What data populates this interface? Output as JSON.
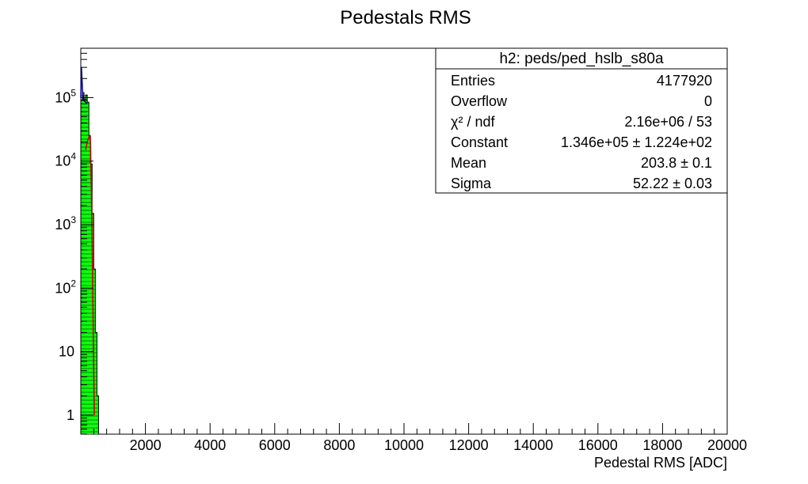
{
  "chart_data": {
    "type": "histogram",
    "title": "Pedestals RMS",
    "xlabel": "Pedestal RMS [ADC]",
    "ylabel": "",
    "xlim": [
      0,
      20000
    ],
    "ylim": [
      0.5,
      600000
    ],
    "log_y": true,
    "grid": false,
    "x_ticks": [
      2000,
      4000,
      6000,
      8000,
      10000,
      12000,
      14000,
      16000,
      18000,
      20000
    ],
    "y_ticks": [
      {
        "value": 1,
        "base": "1",
        "exp": ""
      },
      {
        "value": 10,
        "base": "10",
        "exp": ""
      },
      {
        "value": 100,
        "base": "10",
        "exp": "2"
      },
      {
        "value": 1000,
        "base": "10",
        "exp": "3"
      },
      {
        "value": 10000,
        "base": "10",
        "exp": "4"
      },
      {
        "value": 100000,
        "base": "10",
        "exp": "5"
      }
    ],
    "histogram": {
      "name": "h2: peds/ped_hslb_s80a",
      "fill_color": "#00ff00",
      "line_color": "#000000",
      "bins": [
        {
          "x0": 0,
          "x1": 50,
          "y": 90000
        },
        {
          "x0": 50,
          "x1": 100,
          "y": 120000
        },
        {
          "x0": 100,
          "x1": 150,
          "y": 95000
        },
        {
          "x0": 150,
          "x1": 200,
          "y": 110000
        },
        {
          "x0": 200,
          "x1": 250,
          "y": 85000
        },
        {
          "x0": 250,
          "x1": 300,
          "y": 25000
        },
        {
          "x0": 300,
          "x1": 350,
          "y": 9000
        },
        {
          "x0": 350,
          "x1": 400,
          "y": 1500
        },
        {
          "x0": 400,
          "x1": 450,
          "y": 200
        },
        {
          "x0": 450,
          "x1": 500,
          "y": 20
        },
        {
          "x0": 500,
          "x1": 550,
          "y": 2
        }
      ]
    },
    "overlay": {
      "color": "#00008b",
      "points": [
        [
          0,
          100000
        ],
        [
          20,
          300000
        ],
        [
          40,
          180000
        ],
        [
          60,
          110000
        ],
        [
          80,
          95000
        ],
        [
          100,
          90000
        ],
        [
          150,
          85000
        ],
        [
          200,
          80000
        ]
      ]
    },
    "fit": {
      "color": "#cc0000",
      "points": [
        [
          150,
          15000
        ],
        [
          200,
          20000
        ],
        [
          250,
          24000
        ],
        [
          280,
          25000
        ],
        [
          300,
          18000
        ],
        [
          330,
          3000
        ],
        [
          360,
          250
        ],
        [
          390,
          10
        ],
        [
          420,
          1
        ]
      ]
    },
    "stats_box": {
      "title": "h2: peds/ped_hslb_s80a",
      "rows": [
        {
          "label": "Entries",
          "value": "4177920"
        },
        {
          "label": "Overflow",
          "value": "0"
        },
        {
          "label": "χ² / ndf",
          "value": "2.16e+06 / 53"
        },
        {
          "label": "Constant",
          "value": "1.346e+05 ± 1.224e+02"
        },
        {
          "label": "Mean",
          "value": "203.8 ± 0.1"
        },
        {
          "label": "Sigma",
          "value": "52.22 ± 0.03"
        }
      ]
    }
  }
}
